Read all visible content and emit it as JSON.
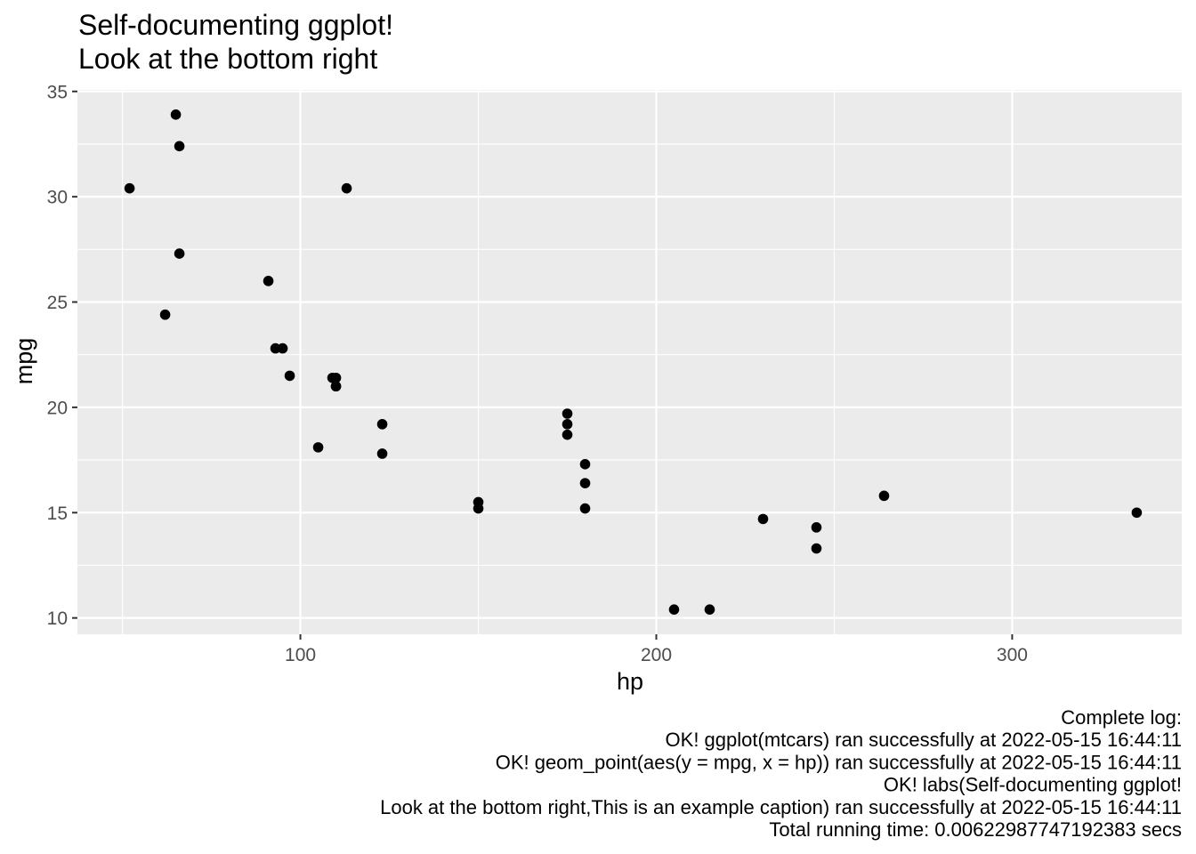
{
  "chart_data": {
    "type": "scatter",
    "title": "Self-documenting ggplot!",
    "subtitle": "Look at the bottom right",
    "xlabel": "hp",
    "ylabel": "mpg",
    "xlim": [
      37.35,
      347.65
    ],
    "ylim": [
      9.225,
      35.075
    ],
    "x_ticks": [
      100,
      200,
      300
    ],
    "y_ticks": [
      10,
      15,
      20,
      25,
      30,
      35
    ],
    "grid": true,
    "points": [
      {
        "x": 110,
        "y": 21.0
      },
      {
        "x": 110,
        "y": 21.0
      },
      {
        "x": 93,
        "y": 22.8
      },
      {
        "x": 110,
        "y": 21.4
      },
      {
        "x": 175,
        "y": 18.7
      },
      {
        "x": 105,
        "y": 18.1
      },
      {
        "x": 245,
        "y": 14.3
      },
      {
        "x": 62,
        "y": 24.4
      },
      {
        "x": 95,
        "y": 22.8
      },
      {
        "x": 123,
        "y": 19.2
      },
      {
        "x": 123,
        "y": 17.8
      },
      {
        "x": 180,
        "y": 16.4
      },
      {
        "x": 180,
        "y": 17.3
      },
      {
        "x": 180,
        "y": 15.2
      },
      {
        "x": 205,
        "y": 10.4
      },
      {
        "x": 215,
        "y": 10.4
      },
      {
        "x": 230,
        "y": 14.7
      },
      {
        "x": 66,
        "y": 32.4
      },
      {
        "x": 52,
        "y": 30.4
      },
      {
        "x": 65,
        "y": 33.9
      },
      {
        "x": 97,
        "y": 21.5
      },
      {
        "x": 150,
        "y": 15.5
      },
      {
        "x": 150,
        "y": 15.2
      },
      {
        "x": 245,
        "y": 13.3
      },
      {
        "x": 175,
        "y": 19.2
      },
      {
        "x": 66,
        "y": 27.3
      },
      {
        "x": 91,
        "y": 26.0
      },
      {
        "x": 113,
        "y": 30.4
      },
      {
        "x": 264,
        "y": 15.8
      },
      {
        "x": 175,
        "y": 19.7
      },
      {
        "x": 335,
        "y": 15.0
      },
      {
        "x": 109,
        "y": 21.4
      }
    ],
    "caption_lines": [
      "Complete log:",
      "OK! ggplot(mtcars) ran successfully at 2022-05-15 16:44:11",
      "OK! geom_point(aes(y = mpg, x = hp)) ran successfully at 2022-05-15 16:44:11",
      "OK! labs(Self-documenting ggplot!",
      "Look at the bottom right,This is an example caption) ran successfully at 2022-05-15 16:44:11",
      "Total running time: 0.00622987747192383 secs"
    ],
    "colors": {
      "panel": "#ebebeb",
      "grid": "#ffffff",
      "point": "#000000",
      "tick_text": "#4d4d4d",
      "tick_mark": "#333333"
    }
  }
}
